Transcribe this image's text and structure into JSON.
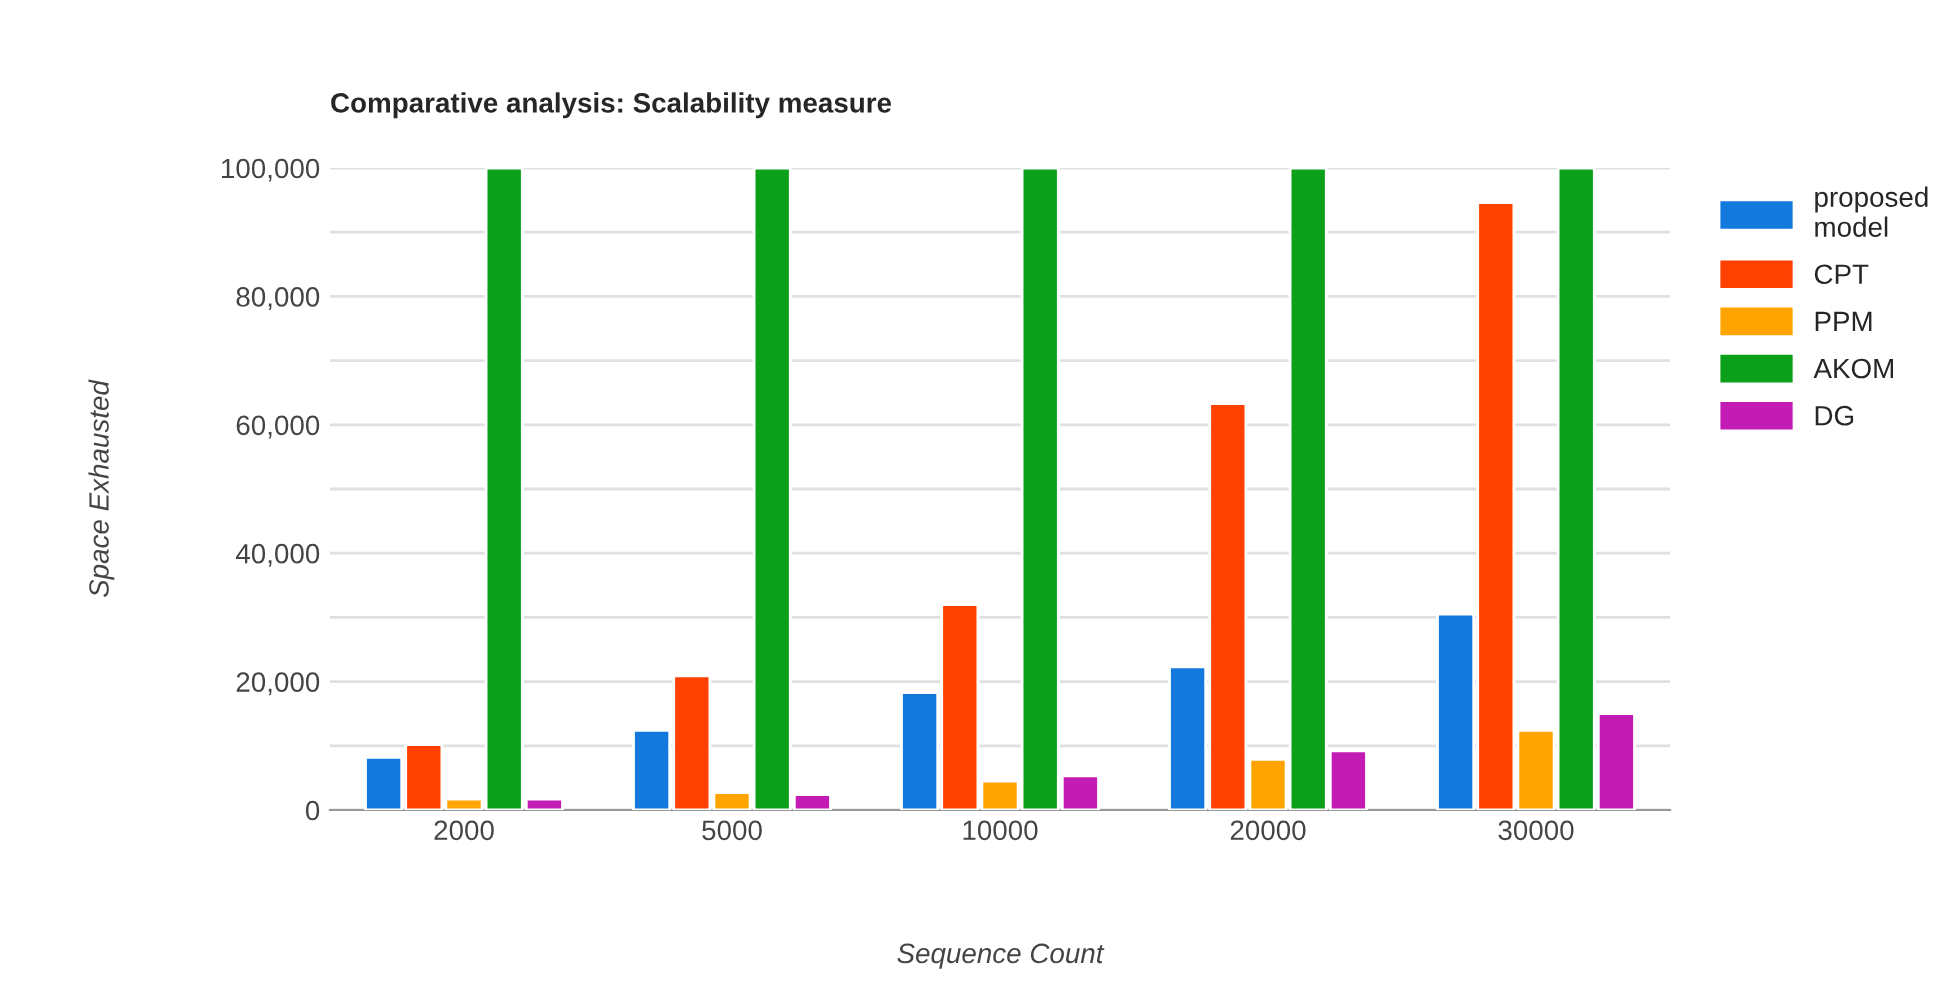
{
  "chart_data": {
    "type": "bar",
    "title": "Comparative analysis: Scalability measure",
    "xlabel": "Sequence Count",
    "ylabel": "Space Exhausted",
    "categories": [
      "2000",
      "5000",
      "10000",
      "20000",
      "30000"
    ],
    "series": [
      {
        "name": "proposed model",
        "color": "#1479dd",
        "values": [
          8200,
          12400,
          18300,
          22300,
          30500
        ]
      },
      {
        "name": "CPT",
        "color": "#ff4100",
        "values": [
          10200,
          20900,
          32000,
          63300,
          94600
        ]
      },
      {
        "name": "PPM",
        "color": "#ffa400",
        "values": [
          1700,
          2700,
          4500,
          7900,
          12400
        ]
      },
      {
        "name": "AKOM",
        "color": "#0ca01a",
        "values": [
          100000,
          100000,
          100000,
          100000,
          100000
        ]
      },
      {
        "name": "DG",
        "color": "#c21cb5",
        "values": [
          1700,
          2400,
          5300,
          9200,
          15000
        ]
      }
    ],
    "ylim": [
      0,
      100000
    ],
    "yticks": [
      {
        "value": 0,
        "label": "0"
      },
      {
        "value": 10000,
        "label": null
      },
      {
        "value": 20000,
        "label": "20,000"
      },
      {
        "value": 30000,
        "label": null
      },
      {
        "value": 40000,
        "label": "40,000"
      },
      {
        "value": 50000,
        "label": null
      },
      {
        "value": 60000,
        "label": "60,000"
      },
      {
        "value": 70000,
        "label": null
      },
      {
        "value": 80000,
        "label": "80,000"
      },
      {
        "value": 90000,
        "label": null
      },
      {
        "value": 100000,
        "label": "100,000"
      }
    ],
    "grid": "y",
    "legend": "top right"
  }
}
